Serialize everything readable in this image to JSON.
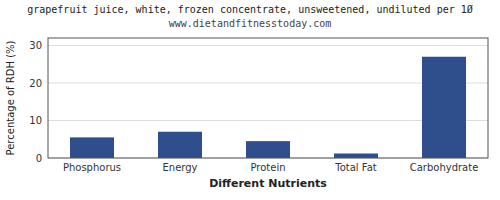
{
  "chart_data": {
    "type": "bar",
    "title": "grapefruit juice, white, frozen concentrate, unsweetened, undiluted per 1Ø",
    "subtitle": "www.dietandfitnesstoday.com",
    "xlabel": "Different Nutrients",
    "ylabel": "Percentage of RDH (%)",
    "categories": [
      "Phosphorus",
      "Energy",
      "Protein",
      "Total Fat",
      "Carbohydrate"
    ],
    "values": [
      5.5,
      7.0,
      4.5,
      1.2,
      27.0
    ],
    "color": "#2e4e8c",
    "ylim": [
      0,
      32
    ],
    "yticks": [
      0,
      10,
      20,
      30
    ],
    "grid": true
  }
}
